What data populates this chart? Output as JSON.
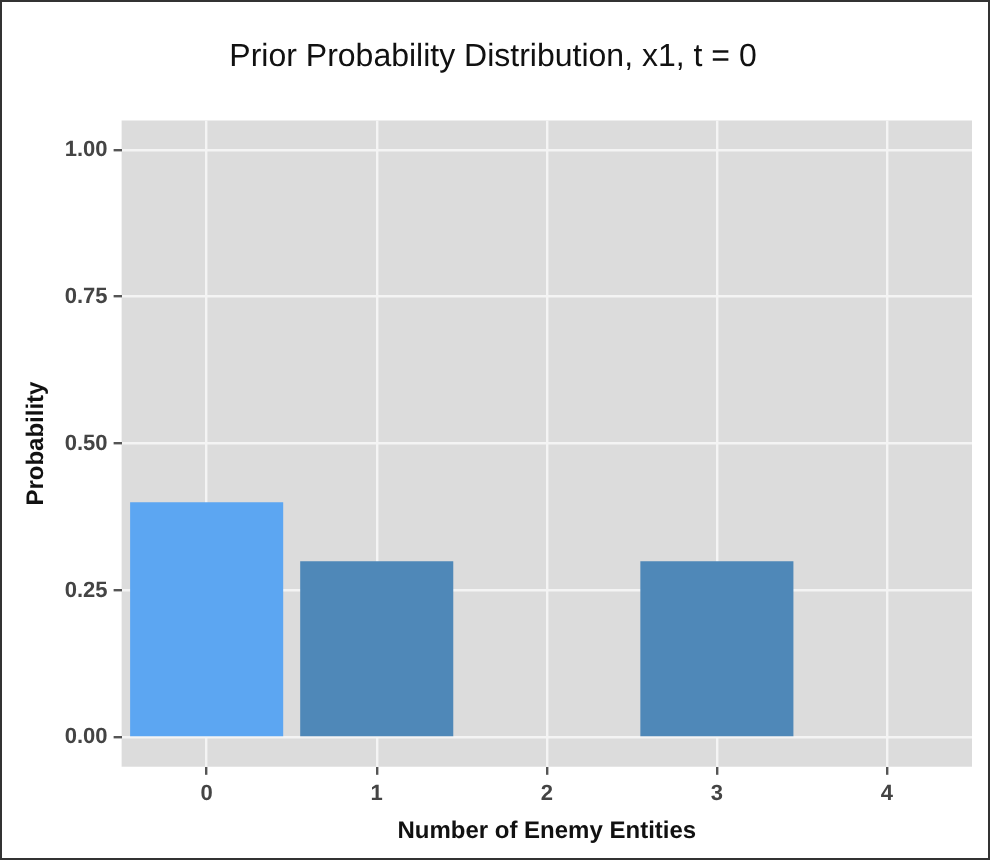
{
  "chart_data": {
    "type": "bar",
    "title": "Prior Probability Distribution, x1, t = 0",
    "xlabel": "Number of Enemy Entities",
    "ylabel": "Probability",
    "categories": [
      "0",
      "1",
      "2",
      "3",
      "4"
    ],
    "values": [
      0.4,
      0.3,
      0,
      0.3,
      0
    ],
    "colors": [
      "#5ca6f2",
      "#4f88b8",
      "#4f88b8",
      "#4f88b8",
      "#4f88b8"
    ],
    "ylim": [
      -0.05,
      1.05
    ],
    "yticks": [
      {
        "value": 0,
        "label": "0.00"
      },
      {
        "value": 0.25,
        "label": "0.25"
      },
      {
        "value": 0.5,
        "label": "0.50"
      },
      {
        "value": 0.75,
        "label": "0.75"
      },
      {
        "value": 1,
        "label": "1.00"
      }
    ],
    "grid": true,
    "legend": false
  }
}
